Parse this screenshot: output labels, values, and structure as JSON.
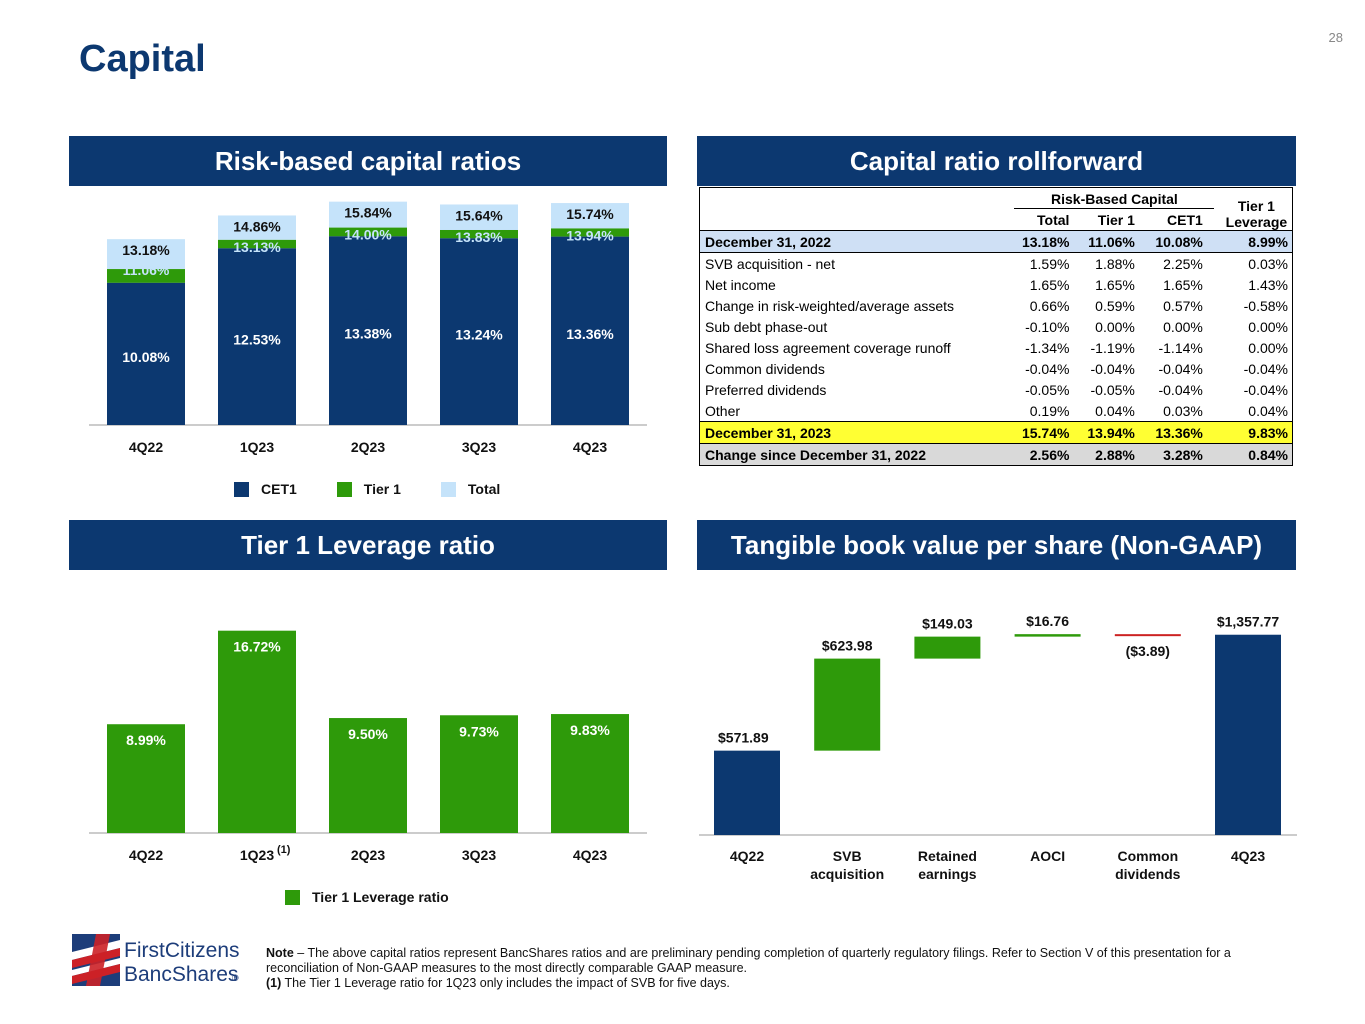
{
  "page": {
    "title": "Capital",
    "number": "28"
  },
  "panels": {
    "risk_based": "Risk-based capital ratios",
    "rollforward": "Capital ratio rollforward",
    "leverage": "Tier 1 Leverage ratio",
    "tbvps": "Tangible book value per share (Non-GAAP)"
  },
  "colors": {
    "navy": "#0c3870",
    "green": "#2e9a0a",
    "light_blue": "#c5e3fa",
    "red": "#cc2222",
    "yellow": "#ffff33"
  },
  "chart_data": [
    {
      "id": "risk_based",
      "type": "bar",
      "stacked": true,
      "categories": [
        "4Q22",
        "1Q23",
        "2Q23",
        "3Q23",
        "4Q23"
      ],
      "series": [
        {
          "name": "CET1",
          "values": [
            10.08,
            12.53,
            13.38,
            13.24,
            13.36
          ],
          "labels": [
            "10.08%",
            "12.53%",
            "13.38%",
            "13.24%",
            "13.36%"
          ]
        },
        {
          "name": "Tier 1",
          "values": [
            11.06,
            13.13,
            14.0,
            13.83,
            13.94
          ],
          "labels": [
            "11.06%",
            "13.13%",
            "14.00%",
            "13.83%",
            "13.94%"
          ]
        },
        {
          "name": "Total",
          "values": [
            13.18,
            14.86,
            15.84,
            15.64,
            15.74
          ],
          "labels": [
            "13.18%",
            "14.86%",
            "15.84%",
            "15.64%",
            "15.74%"
          ]
        }
      ],
      "legend": "bottom"
    },
    {
      "id": "leverage",
      "type": "bar",
      "categories": [
        "4Q22",
        "1Q23",
        "2Q23",
        "3Q23",
        "4Q23"
      ],
      "category_footnote": {
        "index": 1,
        "mark": "(1)"
      },
      "series": [
        {
          "name": "Tier 1 Leverage ratio",
          "values": [
            8.99,
            16.72,
            9.5,
            9.73,
            9.83
          ],
          "labels": [
            "8.99%",
            "16.72%",
            "9.50%",
            "9.73%",
            "9.83%"
          ]
        }
      ],
      "legend": "bottom"
    },
    {
      "id": "tbvps",
      "type": "bar",
      "subtype": "waterfall",
      "categories": [
        "4Q22",
        "SVB acquisition",
        "Retained earnings",
        "AOCI",
        "Common dividends",
        "4Q23"
      ],
      "category_lines": [
        [
          "4Q22"
        ],
        [
          "SVB",
          "acquisition"
        ],
        [
          "Retained",
          "earnings"
        ],
        [
          "AOCI"
        ],
        [
          "Common",
          "dividends"
        ],
        [
          "4Q23"
        ]
      ],
      "values": [
        571.89,
        623.98,
        149.03,
        16.76,
        -3.89,
        1357.77
      ],
      "kinds": [
        "total",
        "increase",
        "increase",
        "increase",
        "decrease",
        "total"
      ],
      "labels": [
        "$571.89",
        "$623.98",
        "$149.03",
        "$16.76",
        "($3.89)",
        "$1,357.77"
      ]
    }
  ],
  "rollforward": {
    "group_header": "Risk-Based Capital",
    "columns": [
      "Total",
      "Tier 1",
      "CET1"
    ],
    "leverage_header": [
      "Tier 1",
      "Leverage"
    ],
    "rows": [
      {
        "label": "December 31, 2022",
        "values": [
          "13.18%",
          "11.06%",
          "10.08%",
          "8.99%"
        ],
        "style": "blue"
      },
      {
        "label": "SVB acquisition - net",
        "values": [
          "1.59%",
          "1.88%",
          "2.25%",
          "0.03%"
        ],
        "style": ""
      },
      {
        "label": "Net income",
        "values": [
          "1.65%",
          "1.65%",
          "1.65%",
          "1.43%"
        ],
        "style": ""
      },
      {
        "label": "Change in risk-weighted/average assets",
        "values": [
          "0.66%",
          "0.59%",
          "0.57%",
          "-0.58%"
        ],
        "style": ""
      },
      {
        "label": "Sub debt phase-out",
        "values": [
          "-0.10%",
          "0.00%",
          "0.00%",
          "0.00%"
        ],
        "style": ""
      },
      {
        "label": "Shared loss agreement coverage runoff",
        "values": [
          "-1.34%",
          "-1.19%",
          "-1.14%",
          "0.00%"
        ],
        "style": ""
      },
      {
        "label": "Common dividends",
        "values": [
          "-0.04%",
          "-0.04%",
          "-0.04%",
          "-0.04%"
        ],
        "style": ""
      },
      {
        "label": "Preferred dividends",
        "values": [
          "-0.05%",
          "-0.05%",
          "-0.04%",
          "-0.04%"
        ],
        "style": ""
      },
      {
        "label": "Other",
        "values": [
          "0.19%",
          "0.04%",
          "0.03%",
          "0.04%"
        ],
        "style": ""
      },
      {
        "label": "December 31, 2023",
        "values": [
          "15.74%",
          "13.94%",
          "13.36%",
          "9.83%"
        ],
        "style": "yellow"
      },
      {
        "label": "Change since December 31, 2022",
        "values": [
          "2.56%",
          "2.88%",
          "3.28%",
          "0.84%"
        ],
        "style": "grey"
      }
    ]
  },
  "logo": {
    "line1": "FirstCitizens",
    "line2": "BancShares",
    "mark": "®"
  },
  "note": {
    "lead": "Note",
    "text": " – The above capital ratios represent BancShares ratios and are preliminary pending completion of quarterly regulatory filings. Refer to Section V of this presentation for a reconciliation of Non-GAAP measures to the most directly comparable GAAP measure.",
    "footnote_mark": "(1)",
    "footnote_text": " The Tier 1 Leverage ratio for 1Q23 only includes the impact of SVB for five days."
  }
}
